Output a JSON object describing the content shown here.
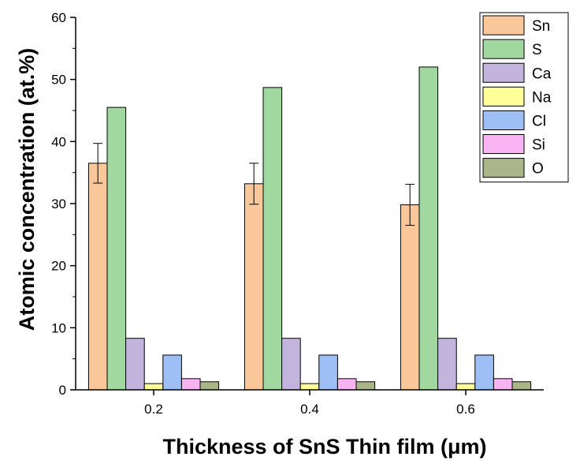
{
  "chart_data": {
    "type": "bar",
    "xlabel": "Thickness of SnS Thin film (μm)",
    "ylabel": "Atomic concentration (at.%)",
    "ylim": [
      0,
      60
    ],
    "yticks": [
      "0",
      "10",
      "20",
      "30",
      "40",
      "50",
      "60"
    ],
    "categories": [
      "0.2",
      "0.4",
      "0.6"
    ],
    "series": [
      {
        "name": "Sn",
        "color": "#f9c79a",
        "values": [
          36.5,
          33.2,
          29.8
        ],
        "errors": [
          3.2,
          3.3,
          3.3
        ]
      },
      {
        "name": "S",
        "color": "#a0d8a0",
        "values": [
          45.5,
          48.7,
          52.0
        ]
      },
      {
        "name": "Ca",
        "color": "#c2b4dc",
        "values": [
          8.3,
          8.3,
          8.3
        ]
      },
      {
        "name": "Na",
        "color": "#ffff99",
        "values": [
          1.0,
          1.0,
          1.0
        ]
      },
      {
        "name": "Cl",
        "color": "#9dbff5",
        "values": [
          5.6,
          5.6,
          5.6
        ]
      },
      {
        "name": "Si",
        "color": "#f8b4f2",
        "values": [
          1.8,
          1.8,
          1.8
        ]
      },
      {
        "name": "O",
        "color": "#aab589",
        "values": [
          1.3,
          1.3,
          1.3
        ]
      }
    ],
    "legend_position": "top-right",
    "grid": false
  }
}
